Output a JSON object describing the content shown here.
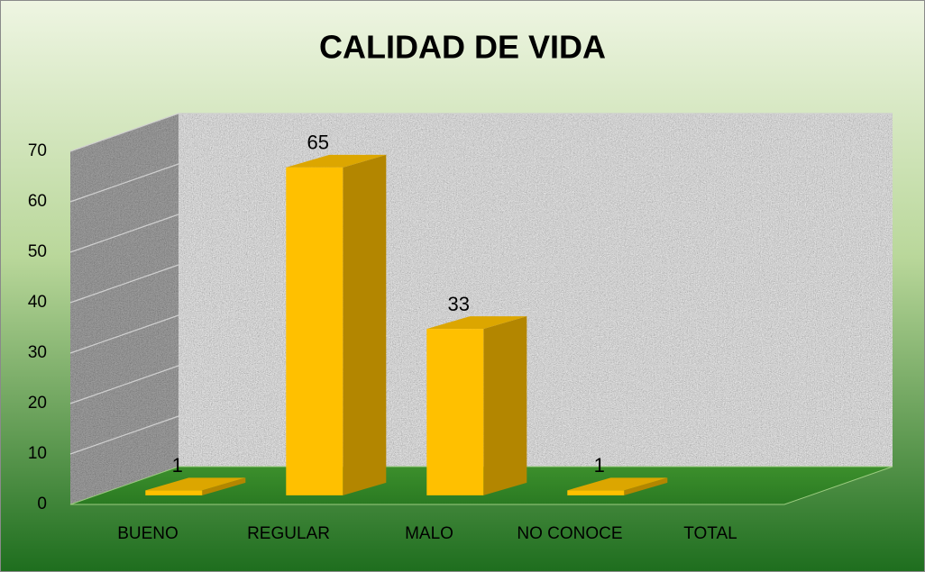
{
  "chart_data": {
    "type": "bar3d",
    "title": "CALIDAD DE VIDA",
    "categories": [
      "BUENO",
      "REGULAR",
      "MALO",
      "NO CONOCE",
      "TOTAL"
    ],
    "values": [
      1,
      65,
      33,
      1,
      null
    ],
    "color": "#ffc000",
    "ylim": [
      0,
      70
    ],
    "yticks": [
      0,
      10,
      20,
      30,
      40,
      50,
      60,
      70
    ],
    "grid": true
  }
}
